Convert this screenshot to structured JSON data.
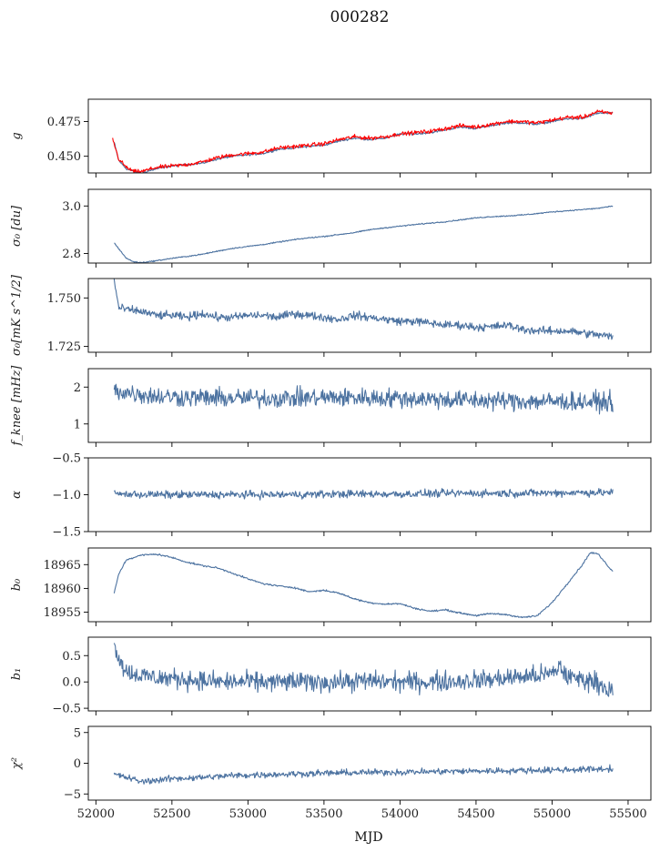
{
  "colors": {
    "series": "#4c72a0",
    "fit": "#ff0000",
    "frame": "#000000"
  },
  "chart_data": {
    "type": "line",
    "title": "000282",
    "xlabel": "MJD",
    "xlim": [
      51950,
      55650
    ],
    "xticks": [
      52000,
      52500,
      53000,
      53500,
      54000,
      54500,
      55000,
      55500
    ],
    "xtick_labels": [
      "52000",
      "52500",
      "53000",
      "53500",
      "54000",
      "54500",
      "55000",
      "55500"
    ],
    "panels": [
      {
        "ylabel": "g",
        "ylim": [
          0.438,
          0.491
        ],
        "yticks": [
          0.45,
          0.475
        ],
        "ytick_labels": [
          "0.450",
          "0.475"
        ],
        "series": [
          {
            "color": "#4c72a0",
            "noise": 0.0006,
            "x": [
              52120,
              52150,
              52200,
              52250,
              52300,
              52400,
              52500,
              52600,
              52700,
              52800,
              52900,
              53000,
              53100,
              53200,
              53300,
              53400,
              53500,
              53600,
              53700,
              53800,
              53900,
              54000,
              54100,
              54200,
              54300,
              54400,
              54500,
              54600,
              54700,
              54800,
              54900,
              55000,
              55100,
              55200,
              55300,
              55400
            ],
            "y": [
              0.46,
              0.447,
              0.441,
              0.439,
              0.438,
              0.441,
              0.443,
              0.444,
              0.445,
              0.448,
              0.45,
              0.451,
              0.452,
              0.455,
              0.456,
              0.457,
              0.458,
              0.461,
              0.463,
              0.462,
              0.463,
              0.466,
              0.466,
              0.467,
              0.469,
              0.471,
              0.47,
              0.472,
              0.474,
              0.474,
              0.473,
              0.475,
              0.477,
              0.477,
              0.481,
              0.481
            ]
          },
          {
            "color": "#ff0000",
            "noise": 0.0012,
            "x": [
              52110,
              52130,
              52150,
              52200,
              52250,
              52300,
              52400,
              52500,
              52600,
              52700,
              52800,
              52900,
              53000,
              53100,
              53200,
              53300,
              53400,
              53500,
              53600,
              53700,
              53800,
              53900,
              54000,
              54100,
              54200,
              54300,
              54400,
              54500,
              54600,
              54700,
              54800,
              54900,
              55000,
              55100,
              55200,
              55300,
              55400
            ],
            "y": [
              0.463,
              0.455,
              0.448,
              0.442,
              0.439,
              0.439,
              0.442,
              0.443,
              0.444,
              0.446,
              0.449,
              0.451,
              0.452,
              0.453,
              0.456,
              0.457,
              0.458,
              0.459,
              0.462,
              0.464,
              0.463,
              0.464,
              0.466,
              0.467,
              0.468,
              0.47,
              0.472,
              0.471,
              0.473,
              0.475,
              0.475,
              0.474,
              0.476,
              0.478,
              0.478,
              0.482,
              0.481
            ]
          }
        ]
      },
      {
        "ylabel": "σ₀ [du]",
        "ylim": [
          2.76,
          3.07
        ],
        "yticks": [
          2.8,
          3.0
        ],
        "ytick_labels": [
          "2.8",
          "3.0"
        ],
        "series": [
          {
            "color": "#4c72a0",
            "noise": 0.002,
            "x": [
              52120,
              52200,
              52250,
              52300,
              52400,
              52500,
              52600,
              52700,
              52800,
              52900,
              53000,
              53100,
              53200,
              53300,
              53400,
              53500,
              53600,
              53700,
              53800,
              53900,
              54000,
              54100,
              54200,
              54300,
              54400,
              54500,
              54600,
              54700,
              54800,
              54900,
              55000,
              55100,
              55200,
              55300,
              55400
            ],
            "y": [
              2.845,
              2.78,
              2.765,
              2.762,
              2.77,
              2.78,
              2.788,
              2.797,
              2.81,
              2.822,
              2.83,
              2.838,
              2.848,
              2.858,
              2.866,
              2.872,
              2.88,
              2.888,
              2.9,
              2.908,
              2.915,
              2.922,
              2.928,
              2.934,
              2.942,
              2.95,
              2.955,
              2.958,
              2.962,
              2.968,
              2.975,
              2.98,
              2.985,
              2.99,
              3.0
            ]
          }
        ]
      },
      {
        "ylabel": "σ₀[mK s^1/2]",
        "ylim": [
          1.722,
          1.76
        ],
        "yticks": [
          1.725,
          1.75
        ],
        "ytick_labels": [
          "1.725",
          "1.750"
        ],
        "series": [
          {
            "color": "#4c72a0",
            "noise": 0.0018,
            "x": [
              52120,
              52150,
              52200,
              52300,
              52400,
              52500,
              52600,
              52700,
              52800,
              52900,
              53000,
              53100,
              53200,
              53300,
              53400,
              53500,
              53600,
              53700,
              53800,
              53900,
              54000,
              54100,
              54200,
              54300,
              54400,
              54500,
              54600,
              54700,
              54800,
              54900,
              55000,
              55100,
              55200,
              55300,
              55400
            ],
            "y": [
              1.759,
              1.745,
              1.744,
              1.743,
              1.741,
              1.741,
              1.74,
              1.742,
              1.74,
              1.74,
              1.741,
              1.741,
              1.74,
              1.742,
              1.741,
              1.74,
              1.739,
              1.741,
              1.74,
              1.739,
              1.738,
              1.738,
              1.737,
              1.736,
              1.736,
              1.735,
              1.735,
              1.736,
              1.734,
              1.733,
              1.733,
              1.733,
              1.732,
              1.731,
              1.73
            ]
          }
        ]
      },
      {
        "ylabel": "f_knee [mHz]",
        "ylim": [
          0.5,
          2.5
        ],
        "yticks": [
          1,
          2
        ],
        "ytick_labels": [
          "1",
          "2"
        ],
        "series": [
          {
            "color": "#4c72a0",
            "noise": 0.22,
            "x": [
              52120,
              52400,
              52800,
              53200,
              53600,
              54000,
              54400,
              54800,
              55200,
              55400
            ],
            "y": [
              1.9,
              1.75,
              1.7,
              1.7,
              1.72,
              1.7,
              1.65,
              1.62,
              1.6,
              1.6
            ]
          }
        ]
      },
      {
        "ylabel": "α",
        "ylim": [
          -1.5,
          -0.5
        ],
        "yticks": [
          -1.5,
          -1.0,
          -0.5
        ],
        "ytick_labels": [
          "−1.5",
          "−1.0",
          "−0.5"
        ],
        "series": [
          {
            "color": "#4c72a0",
            "noise": 0.045,
            "x": [
              52120,
              52400,
              52800,
              53200,
              53600,
              54000,
              54400,
              54800,
              55200,
              55400
            ],
            "y": [
              -0.99,
              -1.0,
              -1.0,
              -1.0,
              -0.99,
              -0.99,
              -0.98,
              -0.98,
              -0.97,
              -0.97
            ]
          }
        ]
      },
      {
        "ylabel": "b₀",
        "ylim": [
          18953,
          18968.5
        ],
        "yticks": [
          18955,
          18960,
          18965
        ],
        "ytick_labels": [
          "18955",
          "18960",
          "18965"
        ],
        "series": [
          {
            "color": "#4c72a0",
            "noise": 0.15,
            "x": [
              52120,
              52150,
              52200,
              52300,
              52400,
              52500,
              52600,
              52700,
              52800,
              52900,
              53000,
              53100,
              53200,
              53300,
              53400,
              53500,
              53600,
              53700,
              53800,
              53900,
              54000,
              54100,
              54200,
              54300,
              54400,
              54500,
              54600,
              54700,
              54800,
              54900,
              55000,
              55100,
              55200,
              55250,
              55300,
              55400
            ],
            "y": [
              18959,
              18963,
              18966,
              18967,
              18967.2,
              18966.5,
              18965.5,
              18964.8,
              18964.3,
              18963.2,
              18962,
              18961,
              18960.5,
              18960.2,
              18959.3,
              18959.6,
              18959,
              18957.8,
              18957,
              18956.7,
              18956.8,
              18955.8,
              18955.2,
              18955.5,
              18954.8,
              18954.3,
              18954.7,
              18954.5,
              18953.9,
              18954.2,
              18957,
              18961,
              18965,
              18967.5,
              18967.3,
              18963.5
            ]
          }
        ]
      },
      {
        "ylabel": "b₁",
        "ylim": [
          -0.55,
          0.85
        ],
        "yticks": [
          -0.5,
          0.0,
          0.5
        ],
        "ytick_labels": [
          "−0.5",
          "0.0",
          "0.5"
        ],
        "series": [
          {
            "color": "#4c72a0",
            "noise": 0.16,
            "x": [
              52120,
              52140,
              52170,
              52200,
              52300,
              52400,
              52600,
              52800,
              53000,
              53200,
              53400,
              53600,
              53800,
              54000,
              54200,
              54400,
              54600,
              54800,
              54900,
              55000,
              55050,
              55100,
              55200,
              55300,
              55400
            ],
            "y": [
              0.8,
              0.55,
              0.35,
              0.2,
              0.12,
              0.08,
              0.05,
              0.0,
              0.0,
              0.0,
              0.0,
              0.0,
              0.02,
              0.0,
              0.0,
              0.02,
              0.05,
              0.1,
              0.12,
              0.15,
              0.3,
              0.1,
              0.05,
              0.0,
              -0.2
            ]
          }
        ]
      },
      {
        "ylabel": "χ²",
        "ylim": [
          -6,
          6
        ],
        "yticks": [
          -5,
          0,
          5
        ],
        "ytick_labels": [
          "−5",
          "0",
          "5"
        ],
        "series": [
          {
            "color": "#4c72a0",
            "noise": 0.45,
            "x": [
              52120,
              52200,
              52300,
              52500,
              52700,
              52900,
              53200,
              53500,
              53800,
              54100,
              54400,
              54700,
              55000,
              55200,
              55400
            ],
            "y": [
              -1.8,
              -2.3,
              -3.0,
              -2.5,
              -2.3,
              -2.0,
              -1.8,
              -1.6,
              -1.5,
              -1.4,
              -1.3,
              -1.2,
              -1.1,
              -1.0,
              -0.9
            ]
          }
        ]
      }
    ]
  }
}
